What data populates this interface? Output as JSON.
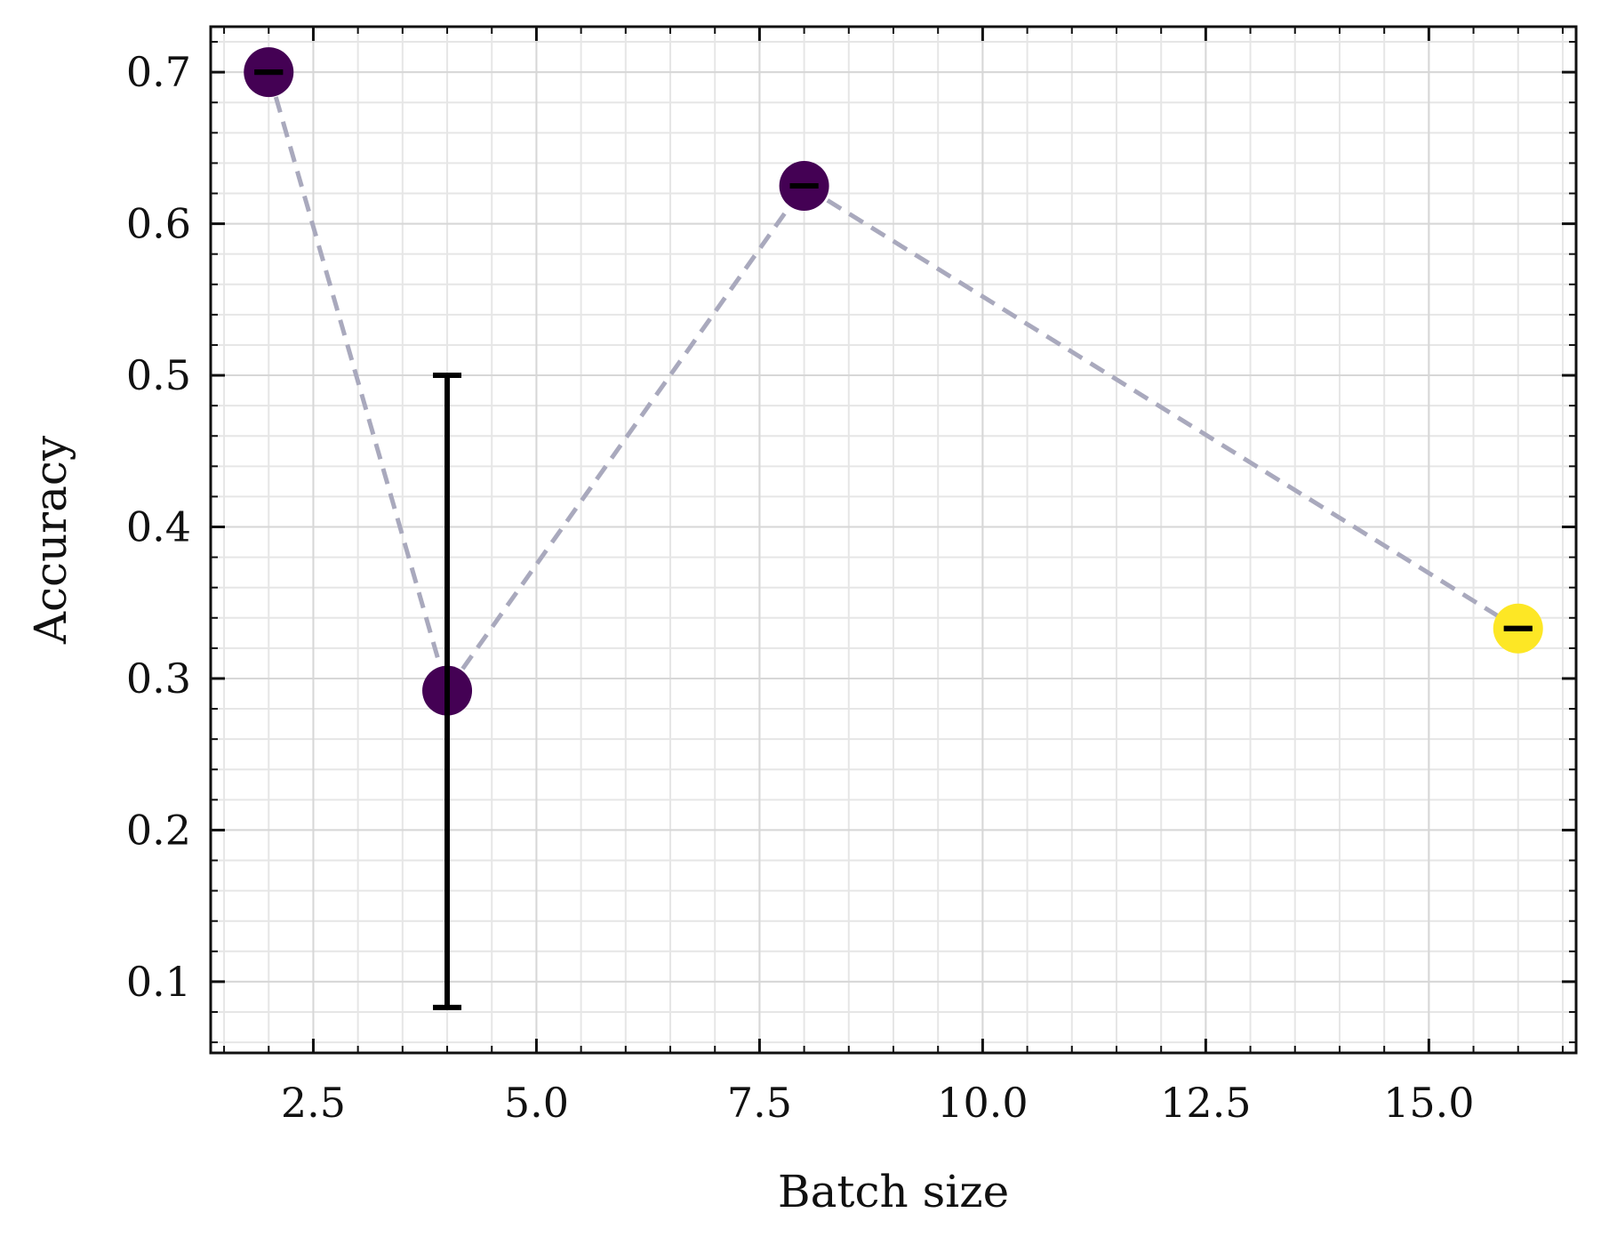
{
  "chart_data": {
    "type": "scatter",
    "title": "",
    "xlabel": "Batch size",
    "ylabel": "Accuracy",
    "xlim": [
      1.35,
      16.65
    ],
    "ylim": [
      0.053,
      0.73
    ],
    "x_ticks": [
      2.5,
      5.0,
      7.5,
      10.0,
      12.5,
      15.0
    ],
    "x_tick_labels": [
      "2.5",
      "5.0",
      "7.5",
      "10.0",
      "12.5",
      "15.0"
    ],
    "y_ticks": [
      0.1,
      0.2,
      0.3,
      0.4,
      0.5,
      0.6,
      0.7
    ],
    "y_tick_labels": [
      "0.1",
      "0.2",
      "0.3",
      "0.4",
      "0.5",
      "0.6",
      "0.7"
    ],
    "grid": true,
    "connector_line": {
      "style": "dashed",
      "color": "#a9a9bd"
    },
    "points": [
      {
        "x": 2,
        "y": 0.7,
        "yerr_low": 0.7,
        "yerr_high": 0.7,
        "color": "#440154"
      },
      {
        "x": 4,
        "y": 0.292,
        "yerr_low": 0.083,
        "yerr_high": 0.5,
        "color": "#440154"
      },
      {
        "x": 8,
        "y": 0.625,
        "yerr_low": 0.625,
        "yerr_high": 0.625,
        "color": "#440154"
      },
      {
        "x": 16,
        "y": 0.333,
        "yerr_low": 0.333,
        "yerr_high": 0.333,
        "color": "#fde725"
      }
    ]
  }
}
